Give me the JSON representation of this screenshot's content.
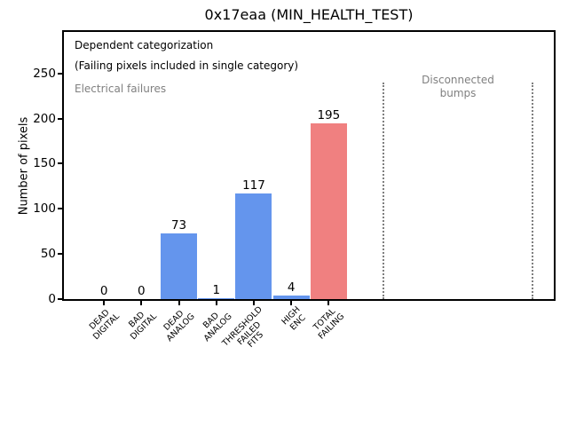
{
  "chart_data": {
    "type": "bar",
    "title": "0x17eaa (MIN_HEALTH_TEST)",
    "ylabel": "Number of pixels",
    "xlabel": "",
    "categories": [
      "DEAD\nDIGITAL",
      "BAD\nDIGITAL",
      "DEAD\nANALOG",
      "BAD\nANALOG",
      "THRESHOLD\nFAILED\nFITS",
      "HIGH\nENC",
      "TOTAL\nFAILING"
    ],
    "values": [
      0,
      0,
      73,
      1,
      117,
      4,
      195
    ],
    "value_labels": [
      "0",
      "0",
      "73",
      "1",
      "117",
      "4",
      "195"
    ],
    "bar_colors": [
      "#6495ed",
      "#6495ed",
      "#6495ed",
      "#6495ed",
      "#6495ed",
      "#6495ed",
      "#f08080"
    ],
    "yticks": [
      0,
      50,
      100,
      150,
      200,
      250
    ],
    "ylim": [
      0,
      296
    ],
    "xlim": [
      -1.07,
      12.01
    ],
    "grid": false,
    "legend": null,
    "annotations": {
      "dependent_note": "Dependent categorization\n(Failing pixels included in single category)",
      "electrical_label": "Electrical failures",
      "disconnected_label": "Disconnected\nbumps"
    },
    "disconnected_region": {
      "vline_x_categories": [
        7.46,
        11.44
      ],
      "line_style": "dotted"
    },
    "colors": {
      "bar_blue": "#6495ed",
      "bar_total": "#f08080",
      "gray_text": "#808080",
      "axis": "#000000",
      "background": "#ffffff"
    }
  }
}
